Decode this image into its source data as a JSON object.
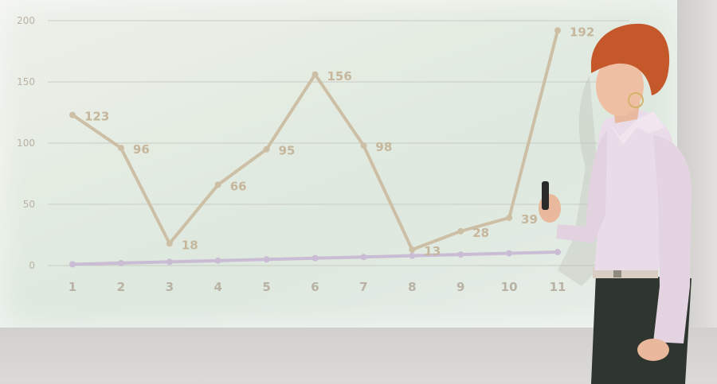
{
  "chart_data": {
    "type": "line",
    "x": [
      1,
      2,
      3,
      4,
      5,
      6,
      7,
      8,
      9,
      10,
      11
    ],
    "x_tick_labels": [
      "1",
      "2",
      "3",
      "4",
      "5",
      "6",
      "7",
      "8",
      "9",
      "10",
      "11"
    ],
    "y_tick_labels": [
      "200",
      "150",
      "100",
      "50",
      "0"
    ],
    "ylim": [
      0,
      200
    ],
    "grid": true,
    "series": [
      {
        "values": [
          123,
          96,
          18,
          66,
          95,
          156,
          98,
          13,
          28,
          39,
          192
        ],
        "labels": [
          "123",
          "96",
          "18",
          "66",
          "95",
          "156",
          "98",
          "13",
          "28",
          "39",
          "192"
        ],
        "color": "#cdbfa6"
      },
      {
        "values": [
          1,
          2,
          3,
          4,
          5,
          6,
          7,
          8,
          9,
          10,
          11
        ],
        "color": "#c9bcd4"
      }
    ]
  },
  "colors": {
    "screen": "#e4ece2",
    "axis_text": "#b9b2a4",
    "grid": "#c8ccc4"
  }
}
